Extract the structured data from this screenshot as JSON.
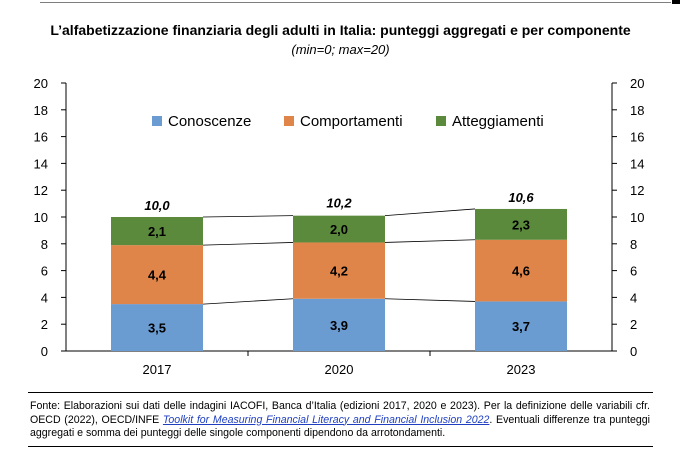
{
  "header": {
    "title": "L’alfabetizzazione finanziaria degli adulti in Italia: punteggi aggregati e per componente",
    "subtitle": "(min=0; max=20)"
  },
  "chart_data": {
    "type": "bar",
    "stacked": true,
    "categories": [
      "2017",
      "2020",
      "2023"
    ],
    "series": [
      {
        "name": "Conoscenze",
        "values": [
          3.5,
          3.9,
          3.7
        ],
        "labels": [
          "3,5",
          "3,9",
          "3,7"
        ],
        "color": "#6a9bd1"
      },
      {
        "name": "Comportamenti",
        "values": [
          4.4,
          4.2,
          4.6
        ],
        "labels": [
          "4,4",
          "4,2",
          "4,6"
        ],
        "color": "#e0854a"
      },
      {
        "name": "Atteggiamenti",
        "values": [
          2.1,
          2.0,
          2.3
        ],
        "labels": [
          "2,1",
          "2,0",
          "2,3"
        ],
        "color": "#5b8a3c"
      }
    ],
    "totals": [
      10.0,
      10.2,
      10.6
    ],
    "total_labels": [
      "10,0",
      "10,2",
      "10,6"
    ],
    "ylim": [
      0,
      20
    ],
    "yticks": [
      0,
      2,
      4,
      6,
      8,
      10,
      12,
      14,
      16,
      18,
      20
    ],
    "secondary_axis": true,
    "series_lines": true,
    "grid": false,
    "legend_position": "top"
  },
  "footer": {
    "source_prefix": "Fonte: Elaborazioni sui dati delle indagini IACOFI, Banca d’Italia (edizioni 2017, 2020 e 2023). Per la definizione delle variabili cfr. OECD (2022), OECD/INFE ",
    "source_link": "Toolkit for Measuring Financial Literacy and Financial Inclusion 2022",
    "source_suffix": ". Eventuali differenze tra punteggi aggregati e somma dei punteggi delle singole componenti dipendono da arrotondamenti."
  }
}
